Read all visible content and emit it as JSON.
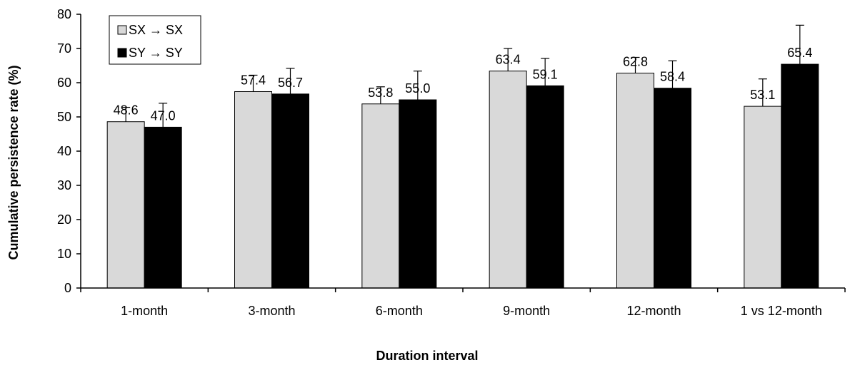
{
  "chart_data": {
    "type": "bar",
    "categories": [
      "1-month",
      "3-month",
      "6-month",
      "9-month",
      "12-month",
      "1 vs 12-month"
    ],
    "series": [
      {
        "name": "SX → SX",
        "color": "#d9d9d9",
        "values": [
          48.6,
          57.4,
          53.8,
          63.4,
          62.8,
          53.1
        ],
        "labels": [
          "48.6",
          "57.4",
          "53.8",
          "63.4",
          "62.8",
          "53.1"
        ],
        "error_upper": [
          4.2,
          4.8,
          5.0,
          6.6,
          4.6,
          8.0
        ]
      },
      {
        "name": "SY → SY",
        "color": "#000000",
        "values": [
          47.0,
          56.7,
          55.0,
          59.1,
          58.4,
          65.4
        ],
        "labels": [
          "47.0",
          "56.7",
          "55.0",
          "59.1",
          "58.4",
          "65.4"
        ],
        "error_upper": [
          7.0,
          7.5,
          8.4,
          8.0,
          8.0,
          11.4
        ]
      }
    ],
    "title": "",
    "xlabel": "Duration interval",
    "ylabel": "Cumulative persistence rate (%)",
    "ylim": [
      0,
      80
    ],
    "yticks": [
      "0",
      "10",
      "20",
      "30",
      "40",
      "50",
      "60",
      "70",
      "80"
    ],
    "grid": false,
    "legend_position": "top-left"
  }
}
